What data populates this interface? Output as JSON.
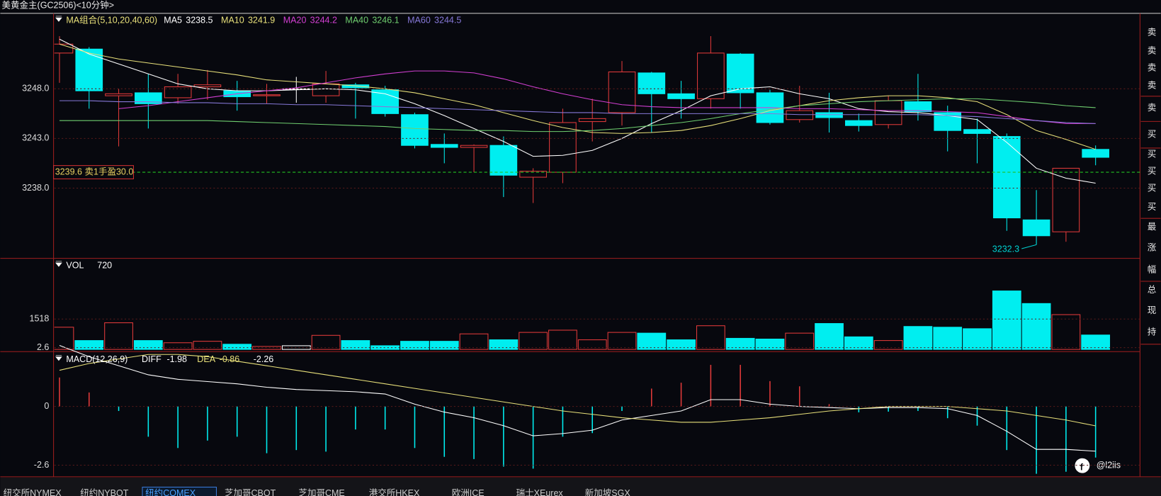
{
  "header": {
    "title": "美黄金主(GC2506)<10分钟>"
  },
  "chart_data": {
    "type": "candlestick",
    "legend_title": "MA组合(5,10,20,40,60)",
    "ylim": [
      3231.0,
      3255.6
    ],
    "yticks": [
      {
        "value": 3248.0,
        "label": "3248.0"
      },
      {
        "value": 3243.0,
        "label": "3243.0"
      },
      {
        "value": 3238.0,
        "label": "3238.0"
      }
    ],
    "up_color": "#e23a3a",
    "down_color": "#00eef0",
    "flat_color": "#ffffff",
    "candles": {
      "open": [
        3251.6,
        3252.0,
        3247.3,
        3247.6,
        3247.1,
        3248.2,
        3247.8,
        3247.3,
        3248.0,
        3247.3,
        3248.4,
        3247.9,
        3245.4,
        3242.4,
        3242.1,
        3242.3,
        3239.1,
        3239.6,
        3244.7,
        3245.6,
        3249.6,
        3247.5,
        3247.0,
        3251.5,
        3247.6,
        3244.9,
        3245.6,
        3244.8,
        3244.4,
        3246.7,
        3245.6,
        3243.9,
        3243.2,
        3234.8,
        3233.6,
        3241.9
      ],
      "high": [
        3253.3,
        3252.2,
        3248.0,
        3249.5,
        3249.5,
        3249.9,
        3248.8,
        3248.5,
        3249.2,
        3249.8,
        3248.6,
        3248.3,
        3245.6,
        3243.5,
        3242.4,
        3243.2,
        3240.0,
        3246.0,
        3247.0,
        3250.8,
        3249.7,
        3248.8,
        3253.3,
        3251.6,
        3247.9,
        3248.3,
        3247.6,
        3245.5,
        3247.3,
        3249.5,
        3246.3,
        3245.0,
        3243.5,
        3237.8,
        3240.0,
        3242.3
      ],
      "low": [
        3248.6,
        3246.0,
        3242.2,
        3244.0,
        3246.5,
        3246.9,
        3245.8,
        3246.5,
        3246.6,
        3246.6,
        3245.0,
        3245.2,
        3242.0,
        3240.5,
        3239.6,
        3237.1,
        3236.5,
        3238.5,
        3242.7,
        3244.3,
        3243.6,
        3245.0,
        3246.0,
        3246.0,
        3244.4,
        3244.6,
        3243.6,
        3243.7,
        3244.0,
        3244.8,
        3241.7,
        3240.5,
        3233.7,
        3232.3,
        3232.6,
        3240.3
      ],
      "close": [
        3252.5,
        3247.8,
        3247.5,
        3246.5,
        3248.2,
        3248.4,
        3247.2,
        3247.4,
        3248.0,
        3248.5,
        3248.1,
        3245.5,
        3242.3,
        3242.1,
        3242.3,
        3239.3,
        3239.7,
        3244.6,
        3245.0,
        3249.7,
        3247.5,
        3247.0,
        3251.6,
        3247.6,
        3244.6,
        3245.8,
        3245.1,
        3244.3,
        3246.8,
        3245.7,
        3243.8,
        3243.5,
        3235.0,
        3233.2,
        3240.0,
        3241.1
      ]
    },
    "series": [
      {
        "name": "MA5",
        "legend_value": 3238.5,
        "color": "#ffffff",
        "values": [
          3253.0,
          3251.5,
          3250.5,
          3249.5,
          3248.5,
          3248.0,
          3247.8,
          3247.8,
          3247.9,
          3248.0,
          3247.9,
          3247.5,
          3246.5,
          3245.3,
          3244.0,
          3242.7,
          3241.2,
          3241.3,
          3241.8,
          3243.0,
          3244.5,
          3245.8,
          3247.3,
          3248.0,
          3248.2,
          3247.5,
          3247.0,
          3246.0,
          3245.7,
          3245.6,
          3245.3,
          3244.9,
          3242.6,
          3240.0,
          3239.0,
          3238.5
        ]
      },
      {
        "name": "MA10",
        "legend_value": 3241.9,
        "color": "#e8e07a",
        "values": [
          3252.5,
          3251.6,
          3251.0,
          3250.6,
          3250.2,
          3249.8,
          3249.4,
          3248.9,
          3248.7,
          3248.5,
          3248.3,
          3248.0,
          3247.6,
          3247.0,
          3246.4,
          3245.6,
          3244.8,
          3244.1,
          3243.6,
          3243.5,
          3243.6,
          3243.8,
          3244.3,
          3245.0,
          3245.8,
          3246.3,
          3246.8,
          3247.1,
          3247.3,
          3247.3,
          3247.1,
          3246.7,
          3245.4,
          3243.8,
          3242.9,
          3241.9
        ]
      },
      {
        "name": "MA20",
        "legend_value": 3244.2,
        "color": "#d23fd2",
        "values": [
          null,
          null,
          3246.0,
          3246.3,
          3246.7,
          3247.1,
          3247.5,
          3247.8,
          3248.1,
          3248.6,
          3249.1,
          3249.5,
          3249.8,
          3249.8,
          3249.6,
          3249.0,
          3248.2,
          3247.5,
          3246.9,
          3246.4,
          3246.2,
          3246.1,
          3246.1,
          3246.1,
          3246.1,
          3246.0,
          3246.0,
          3245.9,
          3245.8,
          3245.8,
          3245.7,
          3245.6,
          3245.2,
          3244.8,
          3244.5,
          3244.5
        ]
      },
      {
        "name": "MA40",
        "legend_value": 3246.1,
        "color": "#6fce6f",
        "values": [
          3244.8,
          3244.8,
          3244.8,
          3244.8,
          3244.8,
          3244.8,
          3244.7,
          3244.6,
          3244.5,
          3244.4,
          3244.3,
          3244.2,
          3244.0,
          3243.9,
          3243.8,
          3243.8,
          3243.7,
          3243.7,
          3243.8,
          3244.0,
          3244.3,
          3244.6,
          3245.0,
          3245.5,
          3245.9,
          3246.3,
          3246.5,
          3246.7,
          3246.8,
          3246.9,
          3247.0,
          3247.0,
          3246.8,
          3246.6,
          3246.3,
          3246.1
        ]
      },
      {
        "name": "MA60",
        "legend_value": 3244.5,
        "color": "#8678d8",
        "values": [
          3246.8,
          3246.8,
          3246.7,
          3246.7,
          3246.6,
          3246.6,
          3246.5,
          3246.5,
          3246.4,
          3246.4,
          3246.3,
          3246.2,
          3246.1,
          3246.0,
          3245.9,
          3245.8,
          3245.7,
          3245.6,
          3245.6,
          3245.5,
          3245.5,
          3245.5,
          3245.5,
          3245.5,
          3245.5,
          3245.4,
          3245.4,
          3245.4,
          3245.4,
          3245.4,
          3245.3,
          3245.2,
          3245.0,
          3244.8,
          3244.6,
          3244.5
        ]
      }
    ],
    "price_line": {
      "value": 3239.6,
      "label": "3239.6 卖1手盈30.0",
      "color": "#22c022"
    },
    "low_label": 3232.3,
    "volume": {
      "name": "VOL",
      "legend_value": 720,
      "ylim": [
        0,
        4440
      ],
      "yticks": [
        1518
      ],
      "values": [
        1110,
        444,
        1332,
        444,
        333,
        407,
        259,
        148,
        185,
        703,
        444,
        185,
        407,
        407,
        777,
        481,
        851,
        962,
        481,
        851,
        814,
        481,
        1184,
        555,
        518,
        814,
        1295,
        629,
        444,
        1147,
        1110,
        1036,
        2923,
        2294,
        1739,
        720
      ]
    },
    "macd": {
      "name": "MACD(12,26,9)",
      "ylim": [
        -2.98,
        2.85
      ],
      "yticks": [
        2.6,
        0,
        -2.6
      ],
      "diff_name": "DIFF",
      "diff_value": -1.98,
      "dea_name": "DEA",
      "dea_value": -0.86,
      "macd_value": -2.26,
      "diff": [
        2.7,
        2.2,
        1.8,
        1.4,
        1.2,
        1.1,
        1.0,
        0.85,
        0.75,
        0.7,
        0.65,
        0.55,
        0.1,
        -0.25,
        -0.5,
        -0.85,
        -1.3,
        -1.2,
        -1.05,
        -0.6,
        -0.4,
        -0.2,
        0.3,
        0.3,
        0.1,
        0.0,
        -0.05,
        -0.1,
        -0.05,
        -0.05,
        -0.1,
        -0.4,
        -1.1,
        -1.9,
        -1.9,
        -1.98
      ],
      "dea": [
        1.6,
        1.9,
        2.1,
        2.3,
        2.3,
        2.2,
        2.0,
        1.8,
        1.6,
        1.4,
        1.2,
        1.0,
        0.8,
        0.6,
        0.4,
        0.2,
        0.0,
        -0.2,
        -0.35,
        -0.5,
        -0.6,
        -0.7,
        -0.7,
        -0.6,
        -0.5,
        -0.35,
        -0.2,
        -0.1,
        0.0,
        0.0,
        0.0,
        -0.1,
        -0.2,
        -0.4,
        -0.6,
        -0.86
      ],
      "hist": [
        1.28,
        0.62,
        -0.2,
        -1.34,
        -1.84,
        -1.51,
        -1.34,
        -2.07,
        -1.93,
        -2.0,
        -1.02,
        -1.02,
        -1.84,
        -2.23,
        -2.33,
        -2.66,
        -2.75,
        -1.34,
        -1.18,
        -0.2,
        0.79,
        1.05,
        1.84,
        1.84,
        1.12,
        0.89,
        0.1,
        -0.26,
        -0.23,
        -0.2,
        -0.52,
        -0.85,
        -1.93,
        -2.98,
        -2.89,
        -2.26
      ]
    }
  },
  "side_panel": {
    "items": [
      "卖",
      "卖",
      "卖",
      "卖",
      "卖",
      "买",
      "买",
      "买",
      "买",
      "买",
      "最",
      "涨",
      "幅",
      "总",
      "现",
      "持"
    ]
  },
  "tabs": {
    "items": [
      "纽交所NYMEX",
      "纽约NYBOT",
      "纽约COMEX",
      "芝加哥CBOT",
      "芝加哥CME",
      "港交所HKEX",
      "欧洲ICE",
      "瑞士XEurex",
      "新加坡SGX"
    ],
    "selected": 2
  },
  "watermark": "@l2iis"
}
